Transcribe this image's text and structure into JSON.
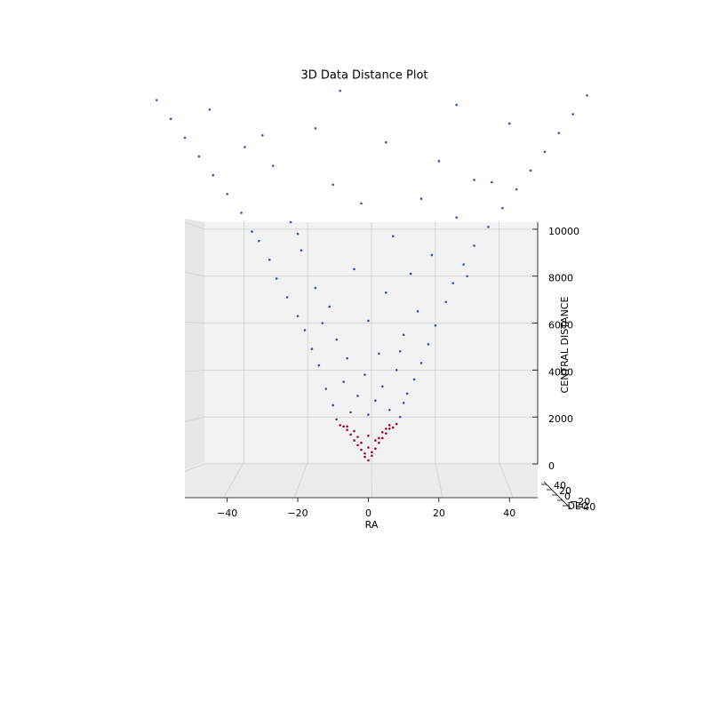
{
  "chart_data": {
    "type": "scatter3d",
    "title": "3D Data Distance Plot",
    "x_label": "RA",
    "y_label": "DEC",
    "z_label": "CENTRAL DISTANCE",
    "xlim": [
      -52,
      48
    ],
    "xticks": [
      {
        "value": -40,
        "label": "−40"
      },
      {
        "value": -20,
        "label": "−20"
      },
      0,
      20,
      40
    ],
    "ylim": [
      -50,
      50
    ],
    "yticks": [
      {
        "value": -40,
        "label": "−40"
      },
      {
        "value": -20,
        "label": "−20"
      },
      0,
      20,
      40
    ],
    "zlim": [
      0,
      10300
    ],
    "zticks": [
      0,
      2000,
      4000,
      6000,
      8000,
      10000
    ],
    "grid": true,
    "series": [
      {
        "color": "#b40426",
        "x": [
          0,
          -1,
          1,
          -2,
          2,
          -3,
          3,
          0,
          -4,
          4,
          -5,
          5,
          -6,
          6,
          -7,
          7,
          -8,
          8,
          0,
          -2,
          2,
          -4,
          4,
          -6,
          6,
          1,
          -1,
          3,
          -3,
          5
        ],
        "values": [
          150,
          300,
          350,
          600,
          650,
          800,
          900,
          700,
          1000,
          1100,
          1250,
          1300,
          1450,
          1500,
          1600,
          1550,
          1650,
          1700,
          1200,
          900,
          1000,
          1400,
          1350,
          1600,
          1650,
          500,
          450,
          1100,
          1150,
          1500
        ]
      },
      {
        "color": "#3b4cc0",
        "x": [
          -9,
          9,
          0,
          -5,
          6,
          -10,
          10,
          2,
          -3,
          11,
          -12,
          4,
          -7,
          13,
          -1,
          8,
          -14,
          15,
          -6,
          3,
          -16,
          17,
          -9,
          10,
          -18,
          19,
          0,
          -20,
          14,
          -11,
          22,
          -23,
          5,
          -15,
          24,
          -26,
          12,
          -4,
          27,
          -28,
          18,
          -19,
          30,
          -31,
          7,
          -33,
          34,
          -22,
          25,
          -36,
          38,
          -2,
          15,
          -40,
          42,
          -10,
          30,
          -44,
          46,
          -27,
          20,
          -48,
          50,
          -35,
          5,
          -52,
          54,
          -15,
          40,
          -56,
          58,
          -45,
          25,
          -60,
          62,
          -8,
          -30,
          35,
          -20,
          28,
          -13,
          9
        ],
        "values": [
          1900,
          2000,
          2100,
          2200,
          2300,
          2500,
          2600,
          2700,
          2900,
          3000,
          3200,
          3300,
          3500,
          3600,
          3800,
          4000,
          4200,
          4300,
          4500,
          4700,
          4900,
          5100,
          5300,
          5500,
          5700,
          5900,
          6100,
          6300,
          6500,
          6700,
          6900,
          7100,
          7300,
          7500,
          7700,
          7900,
          8100,
          8300,
          8500,
          8700,
          8900,
          9100,
          9300,
          9500,
          9700,
          9900,
          10100,
          10300,
          10500,
          10700,
          10900,
          11100,
          11300,
          11500,
          11700,
          11900,
          12100,
          12300,
          12500,
          12700,
          12900,
          13100,
          13300,
          13500,
          13700,
          13900,
          14100,
          14300,
          14500,
          14700,
          14900,
          15100,
          15300,
          15500,
          15700,
          15900,
          14000,
          12000,
          9800,
          8000,
          6000,
          4800
        ]
      }
    ]
  }
}
